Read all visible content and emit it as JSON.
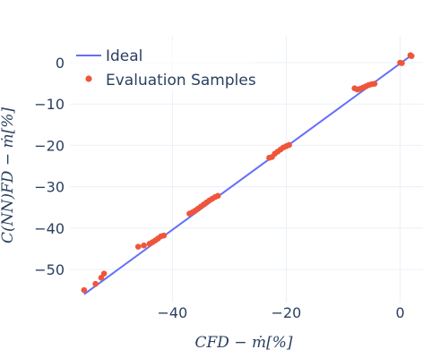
{
  "chart_data": {
    "type": "scatter",
    "title": "",
    "xlabel": "CFD − ṁ[%]",
    "ylabel": "C(NN)FD − ṁ[%]",
    "xlim": [
      -58,
      4
    ],
    "ylim": [
      -58,
      6.5
    ],
    "x_ticks": [
      -40,
      -20,
      0
    ],
    "y_ticks": [
      0,
      -10,
      -20,
      -30,
      -40,
      -50
    ],
    "grid": true,
    "legend_position": "top-left",
    "colors": {
      "ideal": "#636efa",
      "samples": "#ef553b",
      "grid": "#ebf0f8",
      "text": "#2a3f5f"
    },
    "series": [
      {
        "name": "Ideal",
        "mode": "line",
        "x": [
          -55.5,
          2
        ],
        "y": [
          -56,
          1.8
        ]
      },
      {
        "name": "Evaluation Samples",
        "mode": "markers",
        "x": [
          -55.5,
          -53.5,
          -52.5,
          -52,
          -46,
          -45,
          -44,
          -43.5,
          -43,
          -42.5,
          -42,
          -41.5,
          -37,
          -36.5,
          -36,
          -35.5,
          -35,
          -34.5,
          -34,
          -33.5,
          -33,
          -32.5,
          -32,
          -23,
          -22.5,
          -22,
          -21.5,
          -21,
          -20.5,
          -20,
          -19.5,
          -8,
          -7.5,
          -7,
          -6.5,
          -6,
          -5.5,
          -5,
          -4.5,
          0,
          0.3,
          1.8,
          2
        ],
        "y": [
          -55,
          -53.5,
          -52,
          -51,
          -44.5,
          -44.2,
          -43.8,
          -43.4,
          -43,
          -42.5,
          -42,
          -41.8,
          -36.5,
          -36.2,
          -35.8,
          -35.3,
          -34.8,
          -34.3,
          -33.8,
          -33.3,
          -32.9,
          -32.5,
          -32.2,
          -23,
          -22.8,
          -22,
          -21.5,
          -21,
          -20.5,
          -20.2,
          -19.9,
          -6.2,
          -6.5,
          -6.3,
          -6,
          -5.7,
          -5.4,
          -5.2,
          -5.1,
          0,
          -0.1,
          1.8,
          1.6
        ]
      }
    ]
  }
}
